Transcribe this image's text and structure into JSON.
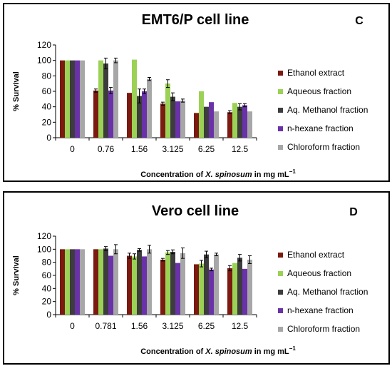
{
  "chart_data": [
    {
      "type": "bar",
      "title": "EMT6/P cell line",
      "panel_letter": "C",
      "ylabel": "% Survival",
      "xlabel_parts": [
        "Concentration of ",
        "X. spinosum",
        " in mg mL",
        "−1"
      ],
      "ylim": [
        0,
        120
      ],
      "yticks": [
        0,
        20,
        40,
        60,
        80,
        100,
        120
      ],
      "grid": false,
      "legend_position": "right",
      "categories": [
        "0",
        "0.76",
        "1.56",
        "3.125",
        "6.25",
        "12.5"
      ],
      "series": [
        {
          "name": "Ethanol extract",
          "color": "#7b1a10",
          "values": [
            100,
            61,
            58,
            44,
            32,
            33
          ],
          "errors": [
            0,
            2,
            0,
            2,
            0,
            2
          ]
        },
        {
          "name": "Aqueous fraction",
          "color": "#9bd155",
          "values": [
            100,
            100,
            101,
            70,
            60,
            45
          ],
          "errors": [
            0,
            0,
            0,
            5,
            0,
            0
          ]
        },
        {
          "name": "Aq. Methanol fraction",
          "color": "#3d3d3d",
          "values": [
            100,
            96,
            54,
            53,
            40,
            40
          ],
          "errors": [
            0,
            7,
            9,
            5,
            0,
            4
          ]
        },
        {
          "name": "n-hexane fraction",
          "color": "#6a32a8",
          "values": [
            100,
            61,
            60,
            47,
            46,
            42
          ],
          "errors": [
            0,
            4,
            3,
            0,
            0,
            2
          ]
        },
        {
          "name": "Chloroform fraction",
          "color": "#a7a7a7",
          "values": [
            100,
            100,
            76,
            48,
            34,
            34
          ],
          "errors": [
            0,
            3,
            2,
            2,
            0,
            0
          ]
        }
      ]
    },
    {
      "type": "bar",
      "title": "Vero cell line",
      "panel_letter": "D",
      "ylabel": "% Survival",
      "xlabel_parts": [
        "Concentration of ",
        "X. spinosum",
        " in mg mL",
        "−1"
      ],
      "ylim": [
        0,
        120
      ],
      "yticks": [
        0,
        20,
        40,
        60,
        80,
        100,
        120
      ],
      "grid": false,
      "legend_position": "right",
      "categories": [
        "0",
        "0.781",
        "1.56",
        "3.125",
        "6.25",
        "12.5"
      ],
      "series": [
        {
          "name": "Ethanol extract",
          "color": "#7b1a10",
          "values": [
            100,
            100,
            90,
            84,
            77,
            71
          ],
          "errors": [
            0,
            0,
            4,
            2,
            0,
            4
          ]
        },
        {
          "name": "Aqueous fraction",
          "color": "#9bd155",
          "values": [
            100,
            100,
            89,
            95,
            78,
            79
          ],
          "errors": [
            0,
            0,
            4,
            3,
            5,
            0
          ]
        },
        {
          "name": "Aq. Methanol fraction",
          "color": "#3d3d3d",
          "values": [
            100,
            101,
            99,
            96,
            92,
            87
          ],
          "errors": [
            0,
            3,
            2,
            3,
            5,
            5
          ]
        },
        {
          "name": "n-hexane fraction",
          "color": "#6a32a8",
          "values": [
            100,
            90,
            89,
            79,
            69,
            70
          ],
          "errors": [
            0,
            0,
            0,
            0,
            2,
            0
          ]
        },
        {
          "name": "Chloroform fraction",
          "color": "#a7a7a7",
          "values": [
            100,
            100,
            100,
            94,
            92,
            84
          ],
          "errors": [
            0,
            7,
            6,
            8,
            2,
            6
          ]
        }
      ]
    }
  ]
}
